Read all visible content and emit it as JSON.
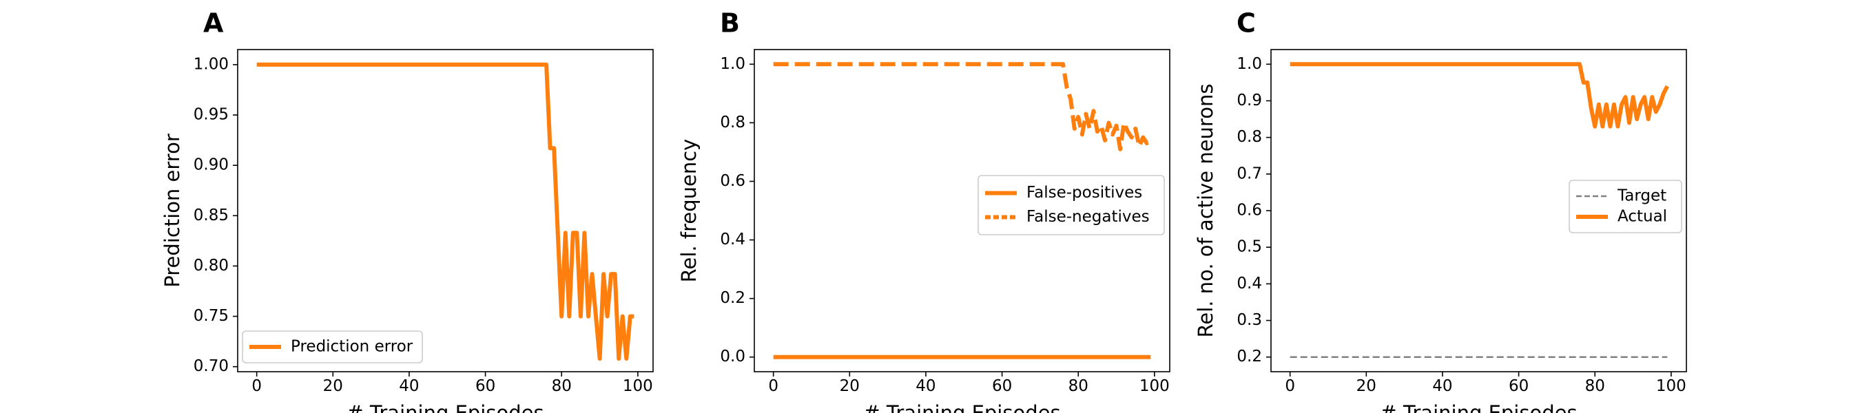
{
  "colors": {
    "actual": "#ff7f0e",
    "target": "#808080"
  },
  "chart_data": [
    {
      "panel": "A",
      "type": "line",
      "xlabel": "# Training Episodes",
      "ylabel": "Prediction error",
      "xlim": [
        -5,
        104
      ],
      "ylim": [
        0.695,
        1.015
      ],
      "xticks": [
        0,
        20,
        40,
        60,
        80,
        100
      ],
      "yticks": [
        0.7,
        0.75,
        0.8,
        0.85,
        0.9,
        0.95,
        1.0
      ],
      "ytick_labels": [
        "0.70",
        "0.75",
        "0.80",
        "0.85",
        "0.90",
        "0.95",
        "1.00"
      ],
      "legend_position": "lower-left",
      "grid": false,
      "series": [
        {
          "name": "Prediction error",
          "style": "solid",
          "color": "#ff7f0e",
          "x": [
            0,
            76,
            77,
            78,
            79,
            80,
            81,
            82,
            83,
            84,
            85,
            86,
            87,
            88,
            89,
            90,
            91,
            92,
            93,
            94,
            95,
            96,
            97,
            98,
            99
          ],
          "y": [
            1.0,
            1.0,
            0.917,
            0.917,
            0.833,
            0.75,
            0.833,
            0.75,
            0.833,
            0.833,
            0.75,
            0.833,
            0.75,
            0.792,
            0.75,
            0.708,
            0.792,
            0.75,
            0.792,
            0.792,
            0.708,
            0.75,
            0.708,
            0.75,
            0.75
          ]
        }
      ]
    },
    {
      "panel": "B",
      "type": "line",
      "xlabel": "# Training Episodes",
      "ylabel": "Rel. frequency",
      "xlim": [
        -5,
        104
      ],
      "ylim": [
        -0.05,
        1.05
      ],
      "xticks": [
        0,
        20,
        40,
        60,
        80,
        100
      ],
      "yticks": [
        0.0,
        0.2,
        0.4,
        0.6,
        0.8,
        1.0
      ],
      "ytick_labels": [
        "0.0",
        "0.2",
        "0.4",
        "0.6",
        "0.8",
        "1.0"
      ],
      "legend_position": "center-right",
      "grid": false,
      "series": [
        {
          "name": "False-positives",
          "style": "solid",
          "color": "#ff7f0e",
          "x": [
            0,
            99
          ],
          "y": [
            0.0,
            0.0
          ]
        },
        {
          "name": "False-negatives",
          "style": "dashed",
          "color": "#ff7f0e",
          "x": [
            0,
            76,
            77,
            78,
            79,
            80,
            81,
            82,
            83,
            84,
            85,
            86,
            87,
            88,
            89,
            90,
            91,
            92,
            93,
            94,
            95,
            96,
            97,
            98,
            99
          ],
          "y": [
            1.0,
            1.0,
            0.92,
            0.88,
            0.78,
            0.82,
            0.76,
            0.83,
            0.78,
            0.84,
            0.77,
            0.79,
            0.74,
            0.8,
            0.76,
            0.79,
            0.71,
            0.8,
            0.77,
            0.75,
            0.78,
            0.72,
            0.75,
            0.73,
            0.75
          ]
        }
      ]
    },
    {
      "panel": "C",
      "type": "line",
      "xlabel": "# Training Episodes",
      "ylabel": "Rel. no. of active neurons",
      "xlim": [
        -5,
        104
      ],
      "ylim": [
        0.16,
        1.04
      ],
      "xticks": [
        0,
        20,
        40,
        60,
        80,
        100
      ],
      "yticks": [
        0.2,
        0.3,
        0.4,
        0.5,
        0.6,
        0.7,
        0.8,
        0.9,
        1.0
      ],
      "ytick_labels": [
        "0.2",
        "0.3",
        "0.4",
        "0.5",
        "0.6",
        "0.7",
        "0.8",
        "0.9",
        "1.0"
      ],
      "legend_position": "center-right",
      "grid": false,
      "series": [
        {
          "name": "Target",
          "style": "dashed-thin",
          "color": "#808080",
          "x": [
            0,
            99
          ],
          "y": [
            0.2,
            0.2
          ]
        },
        {
          "name": "Actual",
          "style": "solid",
          "color": "#ff7f0e",
          "x": [
            0,
            76,
            77,
            78,
            79,
            80,
            81,
            82,
            83,
            84,
            85,
            86,
            87,
            88,
            89,
            90,
            91,
            92,
            93,
            94,
            95,
            96,
            97,
            98,
            99
          ],
          "y": [
            1.0,
            1.0,
            0.95,
            0.95,
            0.88,
            0.83,
            0.89,
            0.83,
            0.89,
            0.83,
            0.89,
            0.83,
            0.89,
            0.91,
            0.84,
            0.91,
            0.85,
            0.89,
            0.91,
            0.85,
            0.91,
            0.87,
            0.89,
            0.92,
            0.94
          ]
        }
      ]
    }
  ]
}
